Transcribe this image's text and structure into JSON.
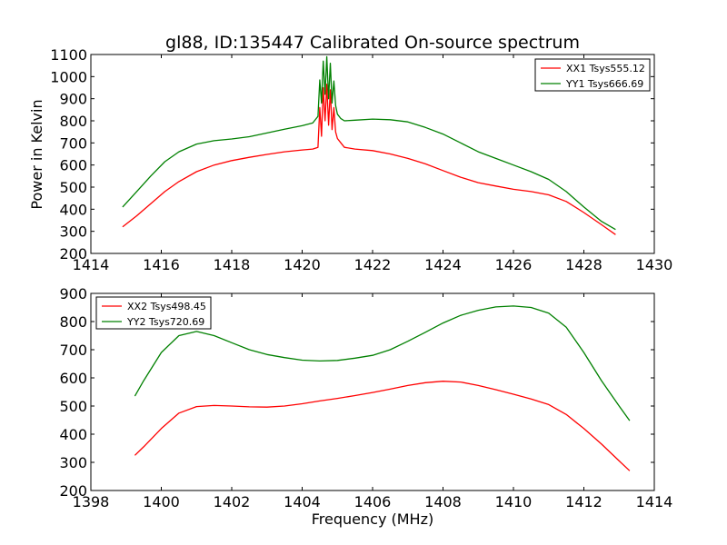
{
  "chart_data": [
    {
      "type": "line",
      "title": "gl88, ID:135447 Calibrated On-source spectrum",
      "xlabel": "",
      "ylabel": "Power in Kelvin",
      "xlim": [
        1414,
        1430
      ],
      "ylim": [
        200,
        1100
      ],
      "xticks": [
        "1414",
        "1416",
        "1418",
        "1420",
        "1422",
        "1424",
        "1426",
        "1428",
        "1430"
      ],
      "yticks": [
        "200",
        "300",
        "400",
        "500",
        "600",
        "700",
        "800",
        "900",
        "1000",
        "1100"
      ],
      "legend_position": "top-right",
      "series": [
        {
          "name": "XX1 Tsys555.12",
          "color": "#ff0000",
          "x": [
            1414.9,
            1415.3,
            1415.7,
            1416.1,
            1416.5,
            1417.0,
            1417.5,
            1418.0,
            1418.5,
            1419.0,
            1419.5,
            1420.0,
            1420.3,
            1420.45,
            1420.5,
            1420.55,
            1420.6,
            1420.65,
            1420.7,
            1420.75,
            1420.8,
            1420.85,
            1420.9,
            1420.95,
            1421.0,
            1421.1,
            1421.2,
            1421.5,
            1422.0,
            1422.5,
            1423.0,
            1423.5,
            1424.0,
            1424.5,
            1425.0,
            1425.5,
            1426.0,
            1426.5,
            1427.0,
            1427.5,
            1428.0,
            1428.5,
            1428.9
          ],
          "y": [
            320,
            370,
            425,
            480,
            525,
            570,
            600,
            620,
            635,
            648,
            660,
            668,
            672,
            680,
            860,
            730,
            950,
            800,
            965,
            780,
            940,
            760,
            860,
            750,
            720,
            700,
            680,
            672,
            665,
            650,
            630,
            605,
            575,
            545,
            520,
            505,
            490,
            480,
            465,
            435,
            385,
            330,
            285
          ]
        },
        {
          "name": "YY1 Tsys666.69",
          "color": "#008000",
          "x": [
            1414.9,
            1415.3,
            1415.7,
            1416.1,
            1416.5,
            1417.0,
            1417.5,
            1418.0,
            1418.5,
            1419.0,
            1419.5,
            1420.0,
            1420.3,
            1420.45,
            1420.5,
            1420.55,
            1420.6,
            1420.65,
            1420.7,
            1420.75,
            1420.8,
            1420.85,
            1420.9,
            1420.95,
            1421.0,
            1421.1,
            1421.2,
            1421.5,
            1422.0,
            1422.5,
            1423.0,
            1423.5,
            1424.0,
            1424.5,
            1425.0,
            1425.5,
            1426.0,
            1426.5,
            1427.0,
            1427.5,
            1428.0,
            1428.5,
            1428.9
          ],
          "y": [
            410,
            480,
            550,
            615,
            660,
            695,
            710,
            718,
            728,
            745,
            762,
            778,
            790,
            820,
            985,
            880,
            1070,
            920,
            1090,
            900,
            1060,
            880,
            980,
            870,
            830,
            810,
            800,
            803,
            808,
            805,
            795,
            770,
            740,
            700,
            660,
            630,
            600,
            570,
            535,
            480,
            410,
            345,
            308
          ]
        }
      ]
    },
    {
      "type": "line",
      "title": "",
      "xlabel": "Frequency (MHz)",
      "ylabel": "",
      "xlim": [
        1398,
        1414
      ],
      "ylim": [
        200,
        900
      ],
      "xticks": [
        "1398",
        "1400",
        "1402",
        "1404",
        "1406",
        "1408",
        "1410",
        "1412",
        "1414"
      ],
      "yticks": [
        "200",
        "300",
        "400",
        "500",
        "600",
        "700",
        "800",
        "900"
      ],
      "legend_position": "top-left",
      "series": [
        {
          "name": "XX2 Tsys498.45",
          "color": "#ff0000",
          "x": [
            1399.25,
            1399.5,
            1400.0,
            1400.5,
            1401.0,
            1401.5,
            1402.0,
            1402.5,
            1403.0,
            1403.5,
            1404.0,
            1404.5,
            1405.0,
            1405.5,
            1406.0,
            1406.5,
            1407.0,
            1407.5,
            1408.0,
            1408.5,
            1409.0,
            1409.5,
            1410.0,
            1410.5,
            1411.0,
            1411.5,
            1412.0,
            1412.5,
            1413.0,
            1413.3
          ],
          "y": [
            325,
            355,
            420,
            475,
            498,
            502,
            500,
            497,
            496,
            500,
            508,
            518,
            527,
            537,
            548,
            560,
            573,
            583,
            588,
            585,
            573,
            558,
            542,
            525,
            505,
            470,
            420,
            365,
            305,
            270
          ]
        },
        {
          "name": "YY2 Tsys720.69",
          "color": "#008000",
          "x": [
            1399.25,
            1399.5,
            1400.0,
            1400.5,
            1401.0,
            1401.5,
            1402.0,
            1402.5,
            1403.0,
            1403.5,
            1404.0,
            1404.5,
            1405.0,
            1405.5,
            1406.0,
            1406.5,
            1407.0,
            1407.5,
            1408.0,
            1408.5,
            1409.0,
            1409.5,
            1410.0,
            1410.5,
            1411.0,
            1411.5,
            1412.0,
            1412.5,
            1413.0,
            1413.3
          ],
          "y": [
            535,
            590,
            690,
            750,
            765,
            750,
            725,
            700,
            683,
            672,
            663,
            660,
            662,
            670,
            680,
            700,
            730,
            762,
            795,
            822,
            840,
            852,
            855,
            850,
            830,
            780,
            690,
            590,
            500,
            448
          ]
        }
      ]
    }
  ]
}
